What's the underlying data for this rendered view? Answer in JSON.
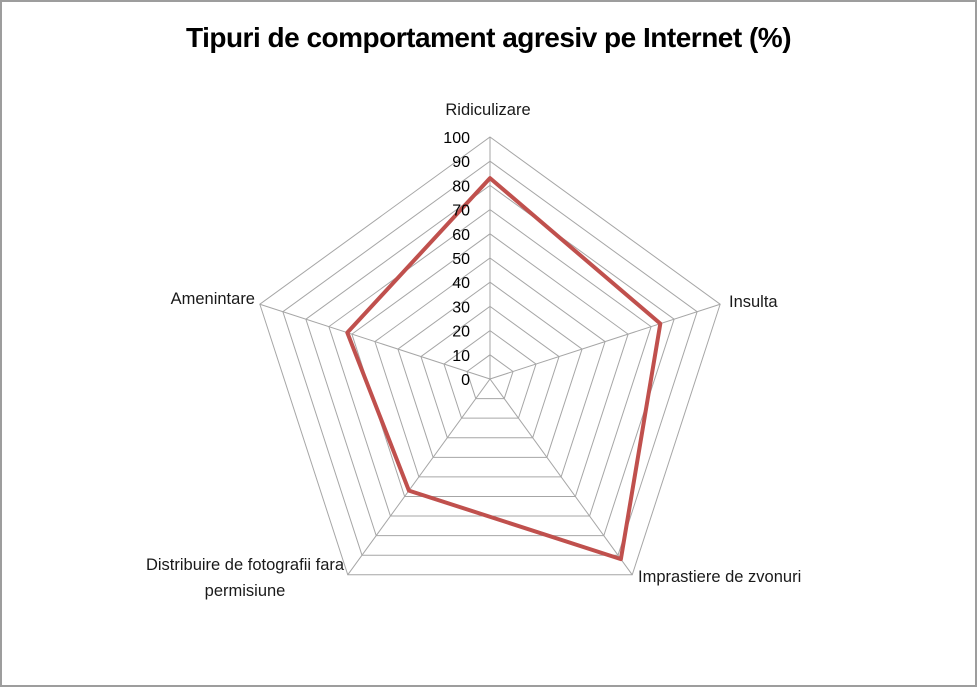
{
  "window": {
    "background": "#ffffff",
    "border_color": "#9d9d9d"
  },
  "chart_data": {
    "type": "radar",
    "title": "Tipuri de comportament agresiv pe Internet (%)",
    "categories": [
      "Ridiculizare",
      "Insulta",
      "Imprastiere de zvonuri",
      "Distribuire de fotografii fara permisiune",
      "Amenintare"
    ],
    "series": [
      {
        "name": "Tipuri de comportament agresiv",
        "values": [
          83,
          74,
          92,
          57,
          62
        ],
        "color": "#C0504D",
        "line_width": 4
      }
    ],
    "axis": {
      "min": 0,
      "max": 100,
      "step": 10,
      "ticks": [
        100,
        90,
        80,
        70,
        60,
        50,
        40,
        30,
        20,
        10,
        0
      ]
    },
    "gridline_color": "#A6A6A6",
    "tick_label_color": "#000000",
    "legend": "none",
    "grid": "on"
  }
}
